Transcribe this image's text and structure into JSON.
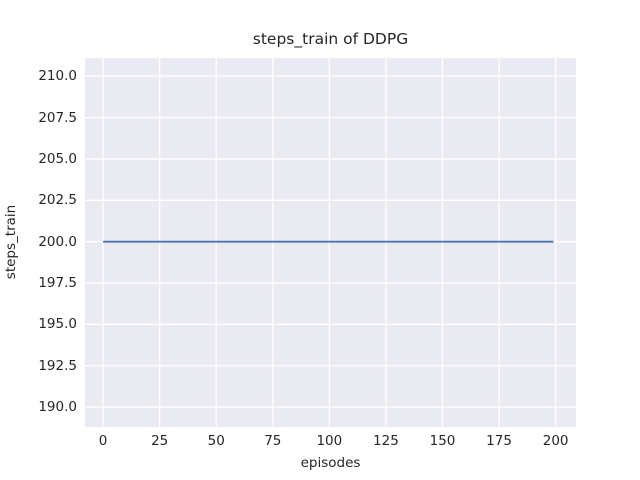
{
  "chart_data": {
    "type": "line",
    "title": "steps_train of DDPG",
    "xlabel": "episodes",
    "ylabel": "steps_train",
    "xlim": [
      -8,
      209
    ],
    "ylim": [
      188.8,
      211.1
    ],
    "xticks": [
      0,
      25,
      50,
      75,
      100,
      125,
      150,
      175,
      200
    ],
    "xtick_labels": [
      "0",
      "25",
      "50",
      "75",
      "100",
      "125",
      "150",
      "175",
      "200"
    ],
    "yticks": [
      190.0,
      192.5,
      195.0,
      197.5,
      200.0,
      202.5,
      205.0,
      207.5,
      210.0
    ],
    "ytick_labels": [
      "190.0",
      "192.5",
      "195.0",
      "197.5",
      "200.0",
      "202.5",
      "205.0",
      "207.5",
      "210.0"
    ],
    "grid": true,
    "legend_position": "none",
    "series": [
      {
        "name": "steps_train",
        "color": "#4c72b0",
        "x": [
          0,
          199
        ],
        "y": [
          200,
          200
        ]
      }
    ],
    "plot_background": "#eaeaf2",
    "grid_color": "#ffffff",
    "text_color": "#262626",
    "figure_background": "#ffffff"
  }
}
